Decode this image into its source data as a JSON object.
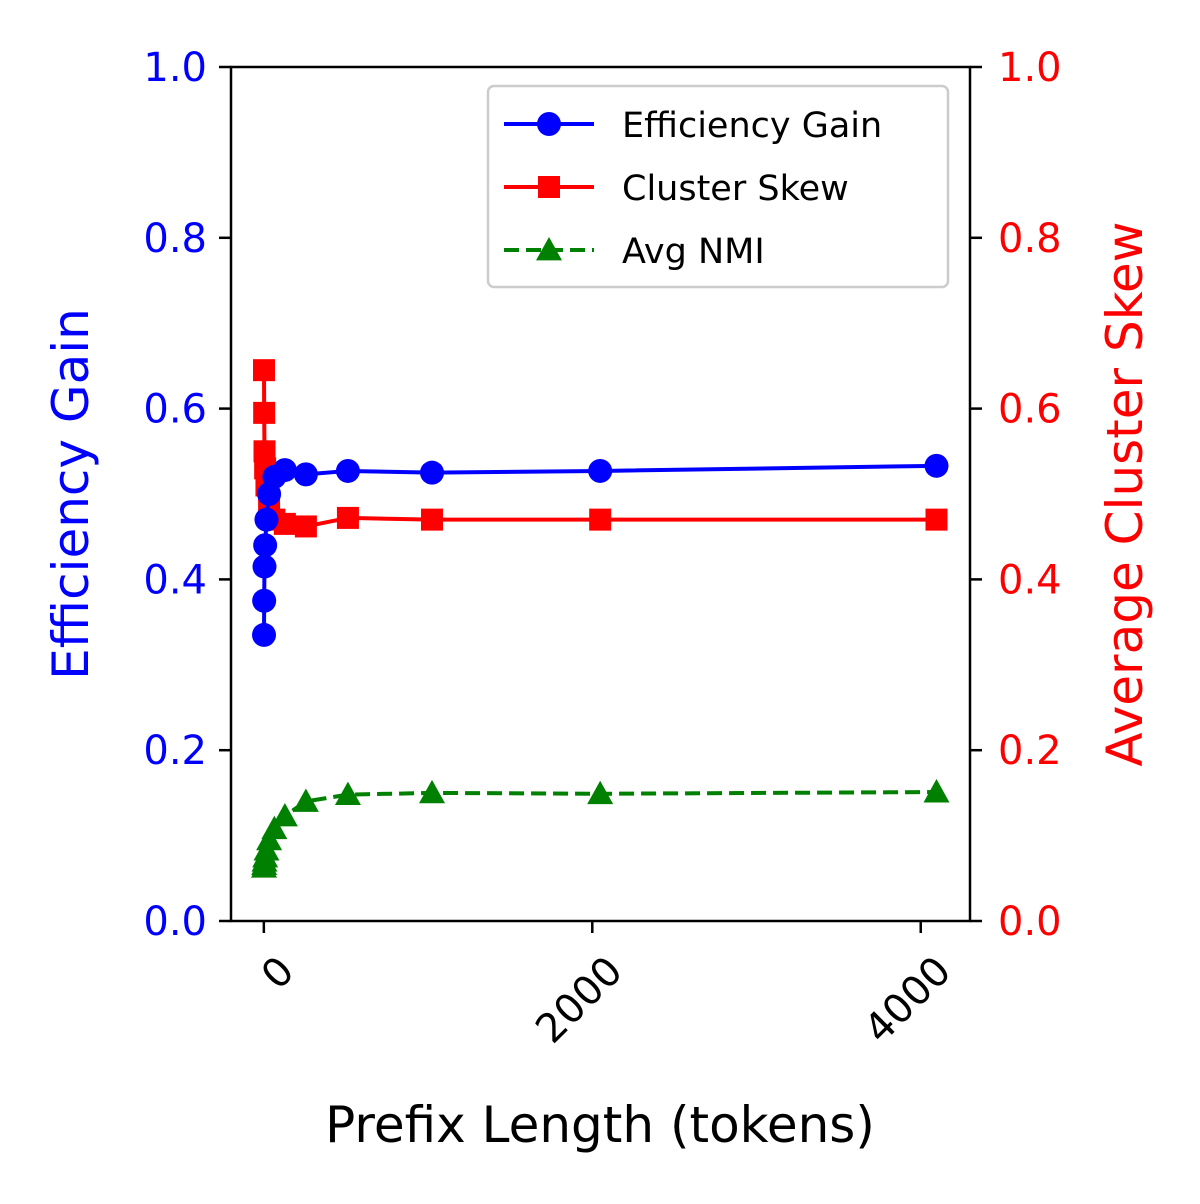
{
  "chart_data": {
    "type": "line",
    "title": "",
    "xlabel": "Prefix Length (tokens)",
    "ylabel": "Efficiency Gain",
    "ylabel_right": "Average Cluster Skew",
    "xlim": [
      -200,
      4300
    ],
    "ylim": [
      0,
      1
    ],
    "ylim_right": [
      0,
      1
    ],
    "x_ticks": [
      0,
      2000,
      4000
    ],
    "y_ticks": [
      0.0,
      0.2,
      0.4,
      0.6,
      0.8,
      1.0
    ],
    "y_ticks_right": [
      0.0,
      0.2,
      0.4,
      0.6,
      0.8,
      1.0
    ],
    "grid": false,
    "legend": {
      "position": "top-right"
    },
    "colors": {
      "left_axis": "#0000ff",
      "right_axis": "#ff0000"
    },
    "series": [
      {
        "name": "Efficiency Gain",
        "axis": "left",
        "color": "#0000ff",
        "marker": "circle",
        "linestyle": "solid",
        "x": [
          1,
          2,
          4,
          8,
          16,
          32,
          64,
          128,
          256,
          512,
          1024,
          2048,
          4096
        ],
        "y": [
          0.335,
          0.375,
          0.415,
          0.44,
          0.47,
          0.5,
          0.52,
          0.528,
          0.523,
          0.527,
          0.525,
          0.527,
          0.533
        ]
      },
      {
        "name": "Cluster Skew",
        "axis": "right",
        "color": "#ff0000",
        "marker": "square",
        "linestyle": "solid",
        "x": [
          1,
          2,
          4,
          8,
          16,
          32,
          64,
          128,
          256,
          512,
          1024,
          2048,
          4096
        ],
        "y": [
          0.645,
          0.595,
          0.55,
          0.53,
          0.51,
          0.49,
          0.47,
          0.465,
          0.462,
          0.472,
          0.47,
          0.47,
          0.47
        ]
      },
      {
        "name": "Avg NMI",
        "axis": "left",
        "color": "#008000",
        "marker": "triangle",
        "linestyle": "dashed",
        "x": [
          1,
          2,
          4,
          8,
          16,
          32,
          64,
          128,
          256,
          512,
          1024,
          2048,
          4096
        ],
        "y": [
          0.063,
          0.066,
          0.07,
          0.075,
          0.083,
          0.095,
          0.108,
          0.123,
          0.14,
          0.148,
          0.15,
          0.149,
          0.151
        ]
      }
    ]
  }
}
